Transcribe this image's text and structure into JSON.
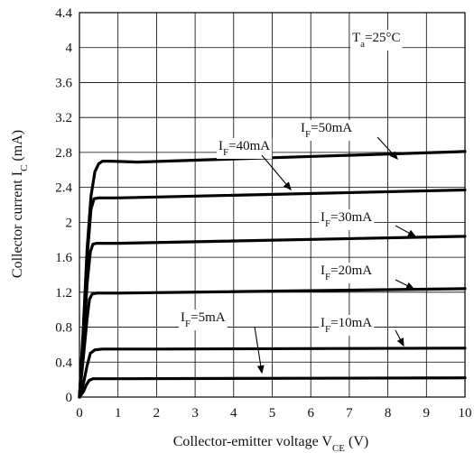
{
  "chart_data": {
    "type": "line",
    "xlabel": "Collector-emitter voltage V",
    "xlabel_sub": "CE",
    "xlabel_unit": " (V)",
    "ylabel": "Collector current I",
    "ylabel_sub": "C",
    "ylabel_unit": " (mA)",
    "xlim": [
      0,
      10
    ],
    "ylim": [
      0,
      4.4
    ],
    "xticks": [
      "0",
      "1",
      "2",
      "3",
      "4",
      "5",
      "6",
      "7",
      "8",
      "9",
      "10"
    ],
    "yticks": [
      "0",
      "0.4",
      "0.8",
      "1.2",
      "1.6",
      "2",
      "2.4",
      "2.8",
      "3.2",
      "3.6",
      "4",
      "4.4"
    ],
    "grid": true,
    "annotation": {
      "main": "T",
      "sub": "a",
      "rest": "=25°C"
    },
    "series": [
      {
        "label_main": "I",
        "label_sub": "F",
        "label_rest": "=5mA",
        "x": [
          0,
          0.1,
          0.18,
          0.25,
          0.35,
          0.5,
          1,
          10
        ],
        "y": [
          0,
          0.06,
          0.14,
          0.19,
          0.21,
          0.21,
          0.21,
          0.22
        ]
      },
      {
        "label_main": "I",
        "label_sub": "F",
        "label_rest": "=10mA",
        "x": [
          0,
          0.1,
          0.2,
          0.28,
          0.4,
          0.6,
          2,
          10
        ],
        "y": [
          0,
          0.15,
          0.36,
          0.5,
          0.54,
          0.55,
          0.55,
          0.56
        ]
      },
      {
        "label_main": "I",
        "label_sub": "F",
        "label_rest": "=20mA",
        "x": [
          0,
          0.1,
          0.2,
          0.26,
          0.33,
          0.45,
          1,
          10
        ],
        "y": [
          0,
          0.45,
          0.9,
          1.12,
          1.18,
          1.19,
          1.19,
          1.24
        ]
      },
      {
        "label_main": "I",
        "label_sub": "F",
        "label_rest": "=30mA",
        "x": [
          0,
          0.1,
          0.2,
          0.28,
          0.35,
          0.45,
          1,
          10
        ],
        "y": [
          0,
          0.6,
          1.3,
          1.66,
          1.75,
          1.76,
          1.76,
          1.84
        ]
      },
      {
        "label_main": "I",
        "label_sub": "F",
        "label_rest": "=40mA",
        "x": [
          0,
          0.1,
          0.2,
          0.3,
          0.38,
          0.5,
          1,
          10
        ],
        "y": [
          0,
          0.75,
          1.6,
          2.15,
          2.27,
          2.28,
          2.28,
          2.37
        ]
      },
      {
        "label_main": "I",
        "label_sub": "F",
        "label_rest": "=50mA",
        "x": [
          0,
          0.1,
          0.2,
          0.3,
          0.4,
          0.5,
          0.6,
          0.8,
          1.5,
          10
        ],
        "y": [
          0,
          0.8,
          1.7,
          2.3,
          2.58,
          2.67,
          2.7,
          2.7,
          2.69,
          2.81
        ]
      }
    ]
  }
}
